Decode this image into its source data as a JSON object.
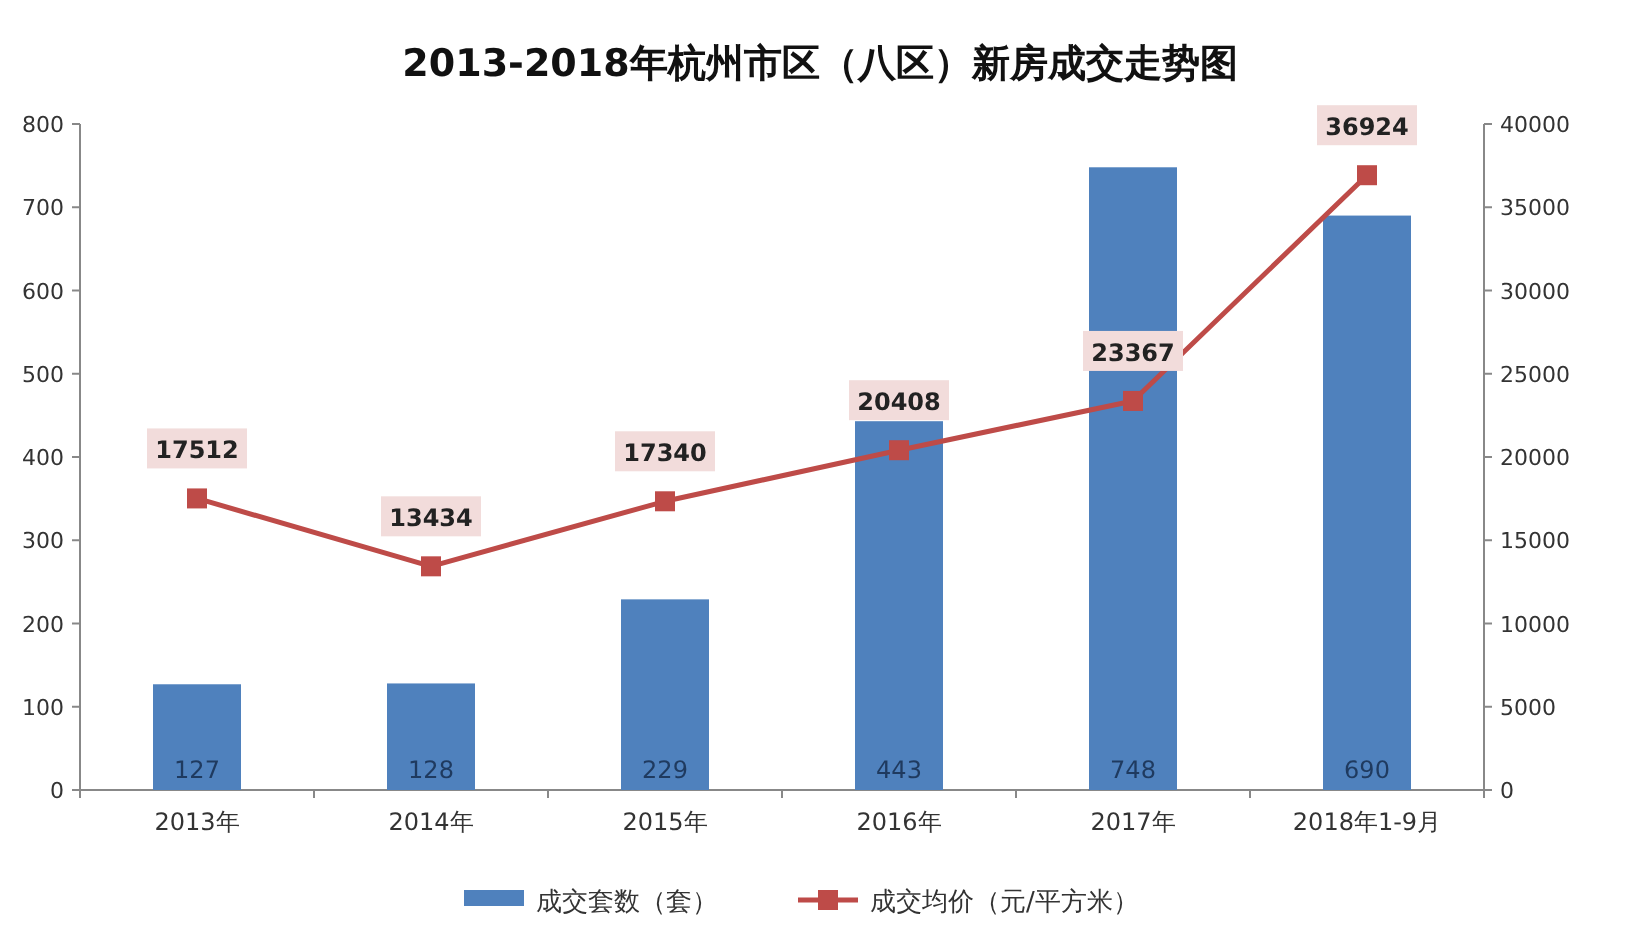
{
  "chart_data": {
    "type": "bar",
    "title": "2013-2018年杭州市区（八区）新房成交走势图",
    "categories": [
      "2013年",
      "2014年",
      "2015年",
      "2016年",
      "2017年",
      "2018年1-9月"
    ],
    "series": [
      {
        "name": "成交套数（套）",
        "color": "#4f81bd",
        "values": [
          127,
          128,
          229,
          443,
          748,
          690
        ]
      },
      {
        "name": "成交均价（元/平方米）",
        "type": "line",
        "axis": "y2",
        "color": "#be4b48",
        "marker": "square",
        "values": [
          17512,
          13434,
          17340,
          20408,
          23367,
          36924
        ]
      }
    ],
    "ylim": [
      0,
      800
    ],
    "yticks": [
      0,
      100,
      200,
      300,
      400,
      500,
      600,
      700,
      800
    ],
    "y2lim": [
      0,
      40000
    ],
    "y2ticks": [
      0,
      5000,
      10000,
      15000,
      20000,
      25000,
      30000,
      35000,
      40000
    ],
    "data_labels": true,
    "legend": "bottom",
    "grid": false
  }
}
